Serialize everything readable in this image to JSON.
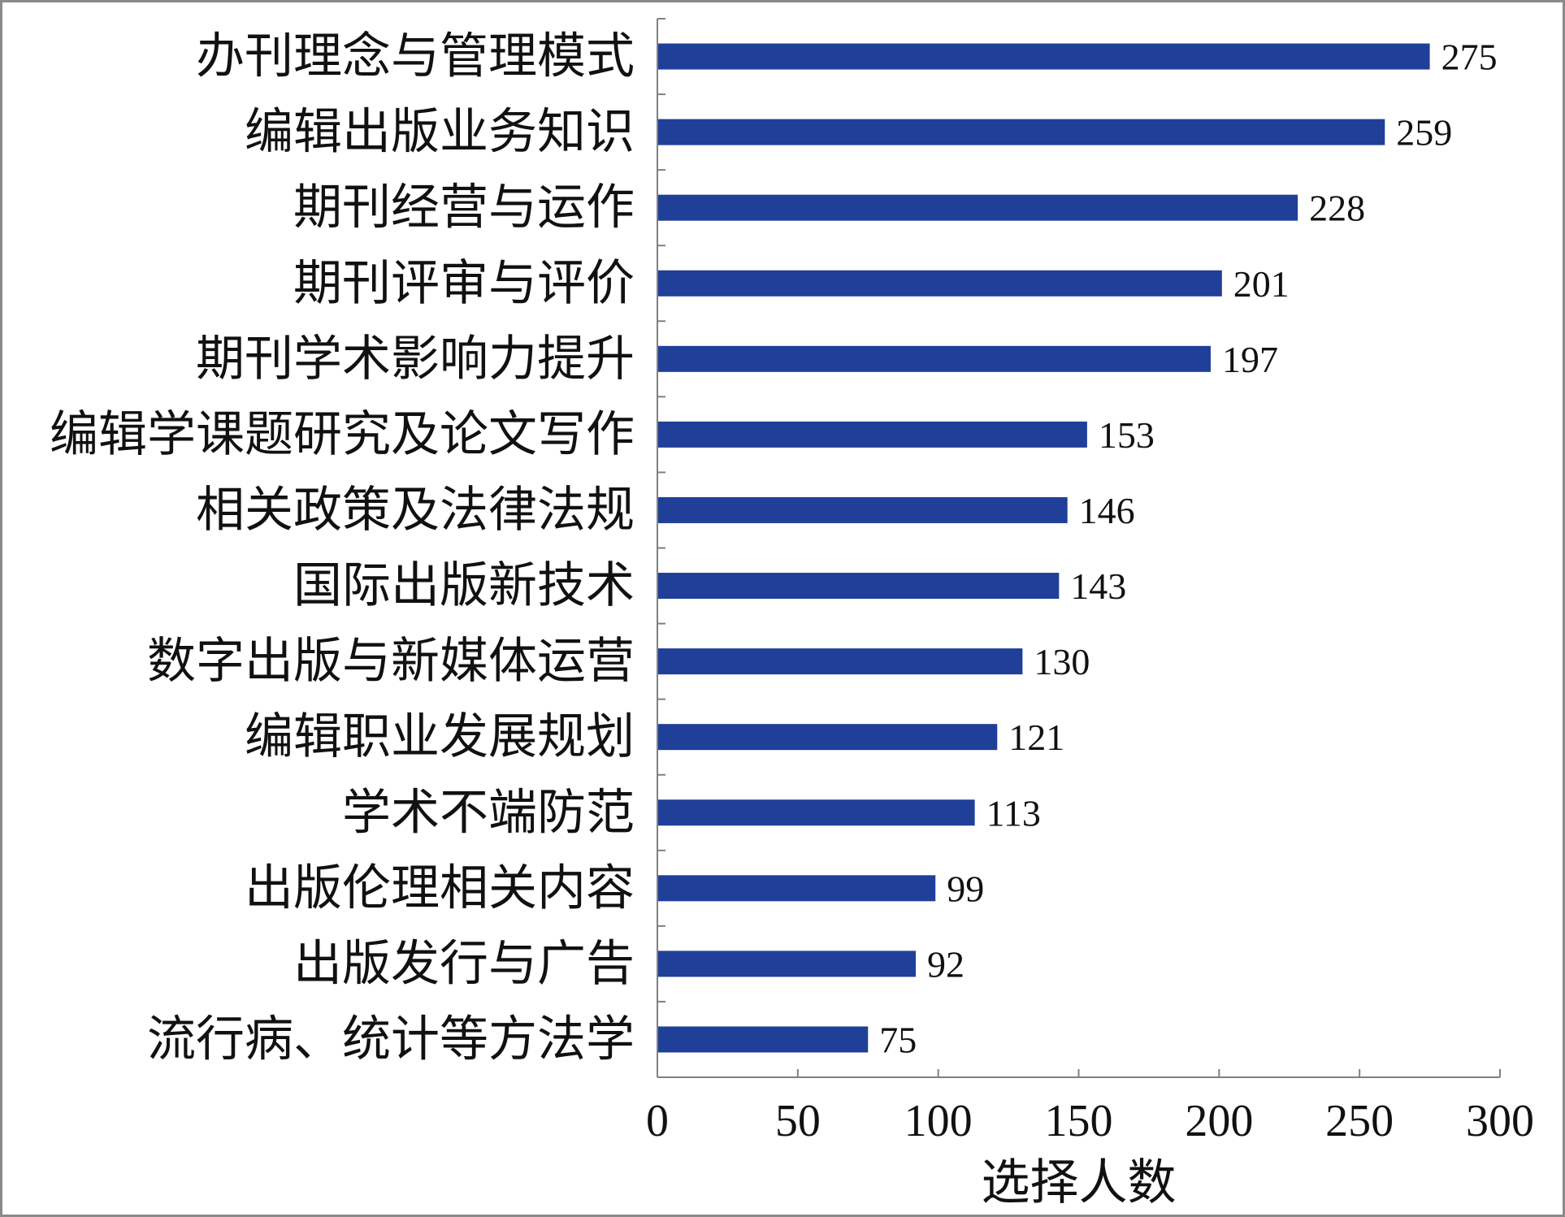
{
  "chart_data": {
    "type": "bar",
    "orientation": "horizontal",
    "categories": [
      "办刊理念与管理模式",
      "编辑出版业务知识",
      "期刊经营与运作",
      "期刊评审与评价",
      "期刊学术影响力提升",
      "编辑学课题研究及论文写作",
      "相关政策及法律法规",
      "国际出版新技术",
      "数字出版与新媒体运营",
      "编辑职业发展规划",
      "学术不端防范",
      "出版伦理相关内容",
      "出版发行与广告",
      "流行病、统计等方法学"
    ],
    "values": [
      275,
      259,
      228,
      201,
      197,
      153,
      146,
      143,
      130,
      121,
      113,
      99,
      92,
      75
    ],
    "xlabel": "选择人数",
    "ylabel": "",
    "xlim": [
      0,
      300
    ],
    "xticks": [
      0,
      50,
      100,
      150,
      200,
      250,
      300
    ],
    "data_labels": true,
    "grid": false,
    "bar_color": "#1f3f99",
    "axis_color": "#808080"
  }
}
